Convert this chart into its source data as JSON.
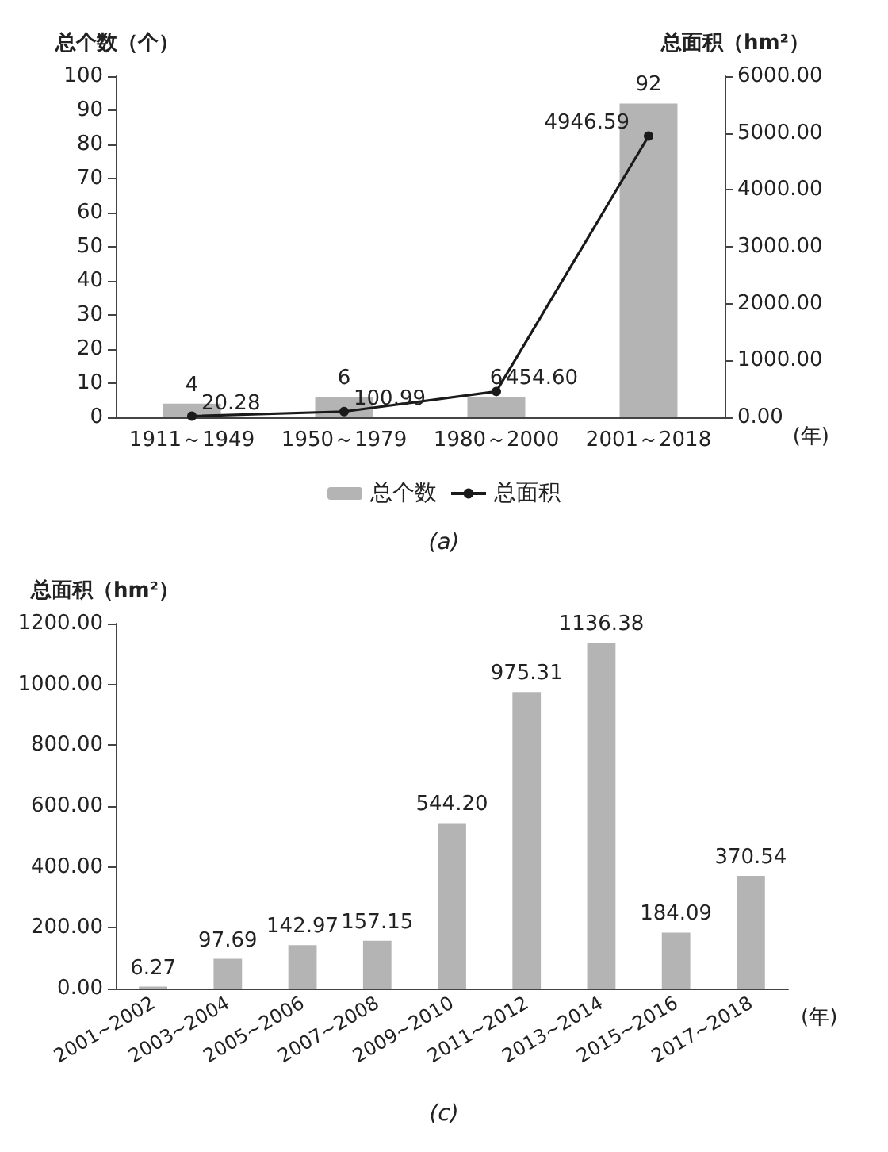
{
  "chart_data": [
    {
      "type": "bar",
      "categories": [
        "1911～1949",
        "1950～1979",
        "1980～2000",
        "2001～2018"
      ],
      "ylabel": "总个数（个）",
      "y2label": "总面积（hm²）",
      "xlabel": "(年)",
      "series": [
        {
          "name": "总个数",
          "type": "bar",
          "color": "#b4b4b4",
          "values": [
            4,
            6,
            6,
            92
          ],
          "value_labels": [
            "4",
            "6",
            "6",
            "92"
          ]
        },
        {
          "name": "总面积",
          "type": "line",
          "axis": "y2",
          "color": "#1a1a1a",
          "values": [
            20.28,
            100.99,
            454.6,
            4946.59
          ],
          "value_labels": [
            "20.28",
            "100.99",
            "454.60",
            "4946.59"
          ]
        }
      ],
      "ylim": [
        0,
        100
      ],
      "yticks": [
        0,
        10,
        20,
        30,
        40,
        50,
        60,
        70,
        80,
        90,
        100
      ],
      "y2lim": [
        0,
        6000
      ],
      "y2ticks": [
        {
          "value": 0,
          "label": "0.00"
        },
        {
          "value": 1000,
          "label": "1000.00"
        },
        {
          "value": 2000,
          "label": "2000.00"
        },
        {
          "value": 3000,
          "label": "3000.00"
        },
        {
          "value": 4000,
          "label": "4000.00"
        },
        {
          "value": 5000,
          "label": "5000.00"
        },
        {
          "value": 6000,
          "label": "6000.00"
        }
      ],
      "grid": false,
      "legend": "bottom",
      "marker": "circle",
      "line_style": "solid",
      "annotations": [
        "(a)"
      ]
    },
    {
      "type": "bar",
      "categories": [
        "2001~2002",
        "2003~2004",
        "2005~2006",
        "2007~2008",
        "2009~2010",
        "2011~2012",
        "2013~2014",
        "2015~2016",
        "2017~2018"
      ],
      "ylabel": "总面积（hm²）",
      "xlabel": "(年)",
      "series": [
        {
          "color": "#b4b4b4",
          "values": [
            6.27,
            97.69,
            142.97,
            157.15,
            544.2,
            975.31,
            1136.38,
            184.09,
            370.54
          ],
          "value_labels": [
            "6.27",
            "97.69",
            "142.97",
            "157.15",
            "544.20",
            "975.31",
            "1136.38",
            "184.09",
            "370.54"
          ]
        }
      ],
      "ylim": [
        0,
        1200
      ],
      "yticks": [
        {
          "value": 0,
          "label": "0.00"
        },
        {
          "value": 200,
          "label": "200.00"
        },
        {
          "value": 400,
          "label": "400.00"
        },
        {
          "value": 600,
          "label": "600.00"
        },
        {
          "value": 800,
          "label": "800.00"
        },
        {
          "value": 1000,
          "label": "1000.00"
        },
        {
          "value": 1200,
          "label": "1200.00"
        }
      ],
      "grid": false,
      "annotations": [
        "(c)"
      ]
    }
  ]
}
